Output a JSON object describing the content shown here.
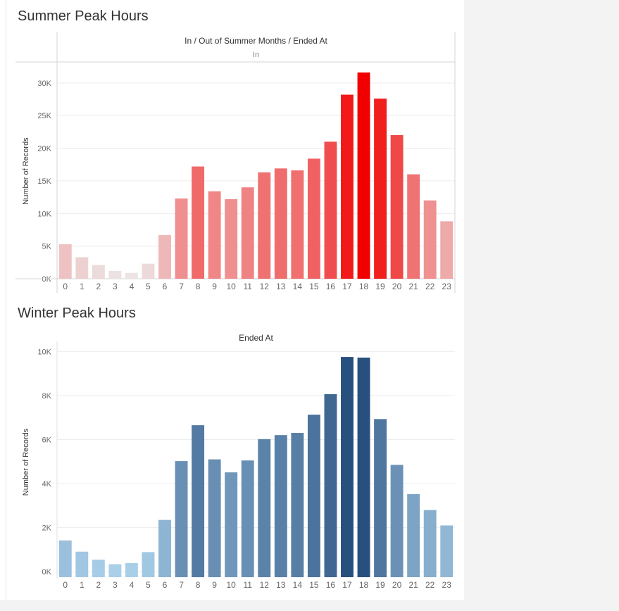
{
  "summer": {
    "title": "Summer Peak Hours",
    "header": "In / Out of Summer Months  /  Ended At",
    "subheader": "In",
    "ylabel": "Number of Records"
  },
  "winter": {
    "title": "Winter Peak Hours",
    "header": "Ended At",
    "ylabel": "Number of Records"
  },
  "colors": {
    "summer_low": "#ede3e3",
    "summer_high": "#f20000",
    "winter_low": "#a9cfe9",
    "winter_high": "#28507f",
    "gridline": "#ececec",
    "axis_text": "#666666"
  },
  "chart_data": [
    {
      "type": "bar",
      "title": "Summer Peak Hours",
      "xlabel": "Ended At",
      "ylabel": "Number of Records",
      "categories": [
        "0",
        "1",
        "2",
        "3",
        "4",
        "5",
        "6",
        "7",
        "8",
        "9",
        "10",
        "11",
        "12",
        "13",
        "14",
        "15",
        "16",
        "17",
        "18",
        "19",
        "20",
        "21",
        "22",
        "23"
      ],
      "values": [
        5300,
        3300,
        2100,
        1200,
        900,
        2300,
        6700,
        12300,
        17200,
        13400,
        12200,
        14000,
        16300,
        16900,
        16600,
        18400,
        21000,
        28200,
        31600,
        27600,
        22000,
        16000,
        12000,
        8800
      ],
      "ylim": [
        0,
        33000
      ],
      "yticks": [
        0,
        5000,
        10000,
        15000,
        20000,
        25000,
        30000
      ],
      "ytick_labels": [
        "0K",
        "5K",
        "10K",
        "15K",
        "20K",
        "25K",
        "30K"
      ],
      "grid": true
    },
    {
      "type": "bar",
      "title": "Winter Peak Hours",
      "xlabel": "Ended At",
      "ylabel": "Number of Records",
      "categories": [
        "0",
        "1",
        "2",
        "3",
        "4",
        "5",
        "6",
        "7",
        "8",
        "9",
        "10",
        "11",
        "12",
        "13",
        "14",
        "15",
        "16",
        "17",
        "18",
        "19",
        "20",
        "21",
        "22",
        "23"
      ],
      "values": [
        1420,
        910,
        550,
        340,
        390,
        890,
        2350,
        5020,
        6650,
        5100,
        4510,
        5050,
        6020,
        6200,
        6300,
        7130,
        8060,
        9750,
        9720,
        6930,
        4850,
        3520,
        2800,
        2100
      ],
      "ylim": [
        -250,
        10200
      ],
      "yticks": [
        0,
        2000,
        4000,
        6000,
        8000,
        10000
      ],
      "ytick_labels": [
        "0K",
        "2K",
        "4K",
        "6K",
        "8K",
        "10K"
      ],
      "grid": true
    }
  ]
}
